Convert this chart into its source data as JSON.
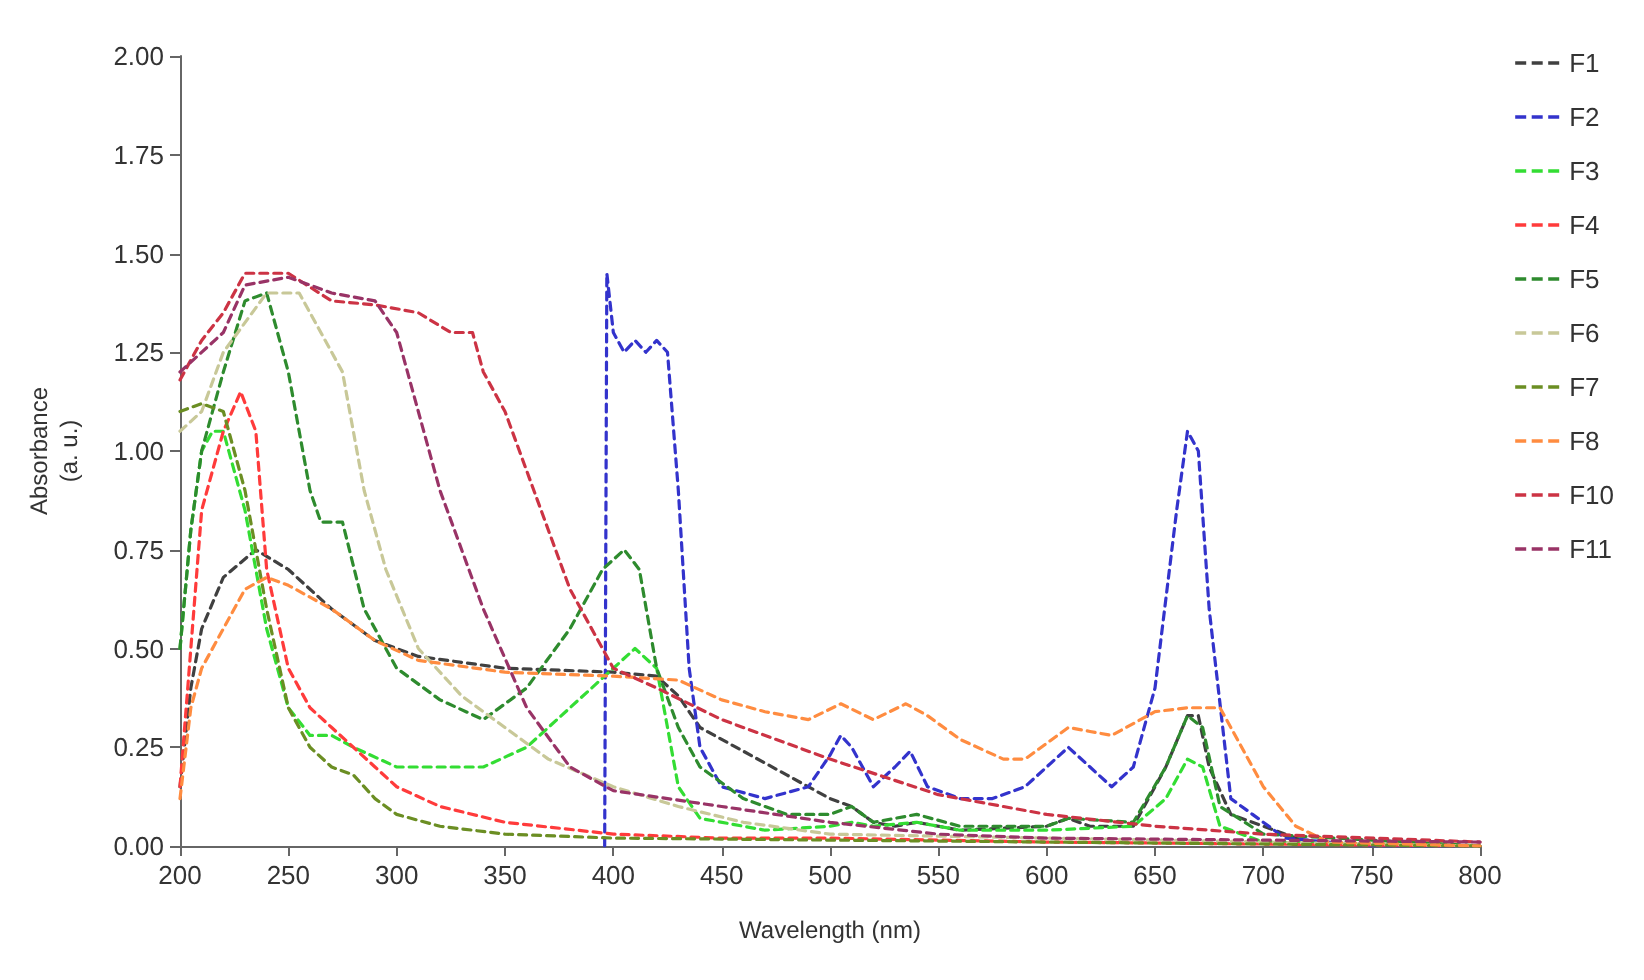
{
  "chart_data": {
    "type": "line",
    "xlabel": "Wavelength (nm)",
    "ylabel": "Absorbance\n(a. u.)",
    "line_style": "dashed",
    "marker": "none",
    "grid": false,
    "legend": "right",
    "xlim": [
      200,
      800
    ],
    "xticks": [
      200,
      250,
      300,
      350,
      400,
      450,
      500,
      550,
      600,
      650,
      700,
      750,
      800
    ],
    "ylim": [
      0,
      2
    ],
    "yticks": [
      {
        "value": 0,
        "label": "0.00"
      },
      {
        "value": 0.25,
        "label": "0.25"
      },
      {
        "value": 0.5,
        "label": "0.50"
      },
      {
        "value": 0.75,
        "label": "0.75"
      },
      {
        "value": 1,
        "label": "1.00"
      },
      {
        "value": 1.25,
        "label": "1.25"
      },
      {
        "value": 1.5,
        "label": "1.50"
      },
      {
        "value": 1.75,
        "label": "1.75"
      },
      {
        "value": 2,
        "label": "2.00"
      }
    ],
    "series": [
      {
        "name": "F1",
        "color": "#404040",
        "x": [
          200,
          205,
          210,
          220,
          235,
          250,
          270,
          290,
          310,
          350,
          400,
          420,
          430,
          440,
          460,
          480,
          500,
          510,
          520,
          530,
          540,
          560,
          600,
          610,
          620,
          640,
          655,
          665,
          670,
          675,
          685,
          700,
          720,
          800
        ],
        "values": [
          0.15,
          0.4,
          0.55,
          0.68,
          0.75,
          0.7,
          0.6,
          0.52,
          0.48,
          0.45,
          0.44,
          0.43,
          0.38,
          0.3,
          0.24,
          0.18,
          0.12,
          0.1,
          0.06,
          0.05,
          0.06,
          0.04,
          0.05,
          0.07,
          0.05,
          0.05,
          0.2,
          0.33,
          0.33,
          0.2,
          0.08,
          0.05,
          0.01,
          0
        ]
      },
      {
        "name": "F2",
        "color": "#3333cc",
        "x": [
          396,
          397,
          400,
          405,
          410,
          415,
          420,
          425,
          430,
          435,
          440,
          450,
          470,
          490,
          500,
          505,
          510,
          520,
          530,
          537,
          545,
          560,
          575,
          590,
          600,
          610,
          620,
          630,
          640,
          650,
          660,
          665,
          670,
          675,
          685,
          695,
          710,
          750,
          800
        ],
        "values": [
          0,
          1.45,
          1.3,
          1.25,
          1.28,
          1.25,
          1.28,
          1.25,
          0.9,
          0.45,
          0.25,
          0.15,
          0.12,
          0.15,
          0.23,
          0.28,
          0.25,
          0.15,
          0.2,
          0.24,
          0.15,
          0.12,
          0.12,
          0.15,
          0.2,
          0.25,
          0.2,
          0.15,
          0.2,
          0.4,
          0.85,
          1.05,
          1.0,
          0.6,
          0.12,
          0.08,
          0.02,
          0,
          0
        ]
      },
      {
        "name": "F3",
        "color": "#33dd33",
        "x": [
          200,
          205,
          210,
          215,
          220,
          230,
          240,
          250,
          260,
          270,
          280,
          300,
          320,
          340,
          360,
          380,
          400,
          410,
          420,
          425,
          430,
          440,
          470,
          500,
          510,
          520,
          540,
          560,
          600,
          640,
          655,
          665,
          672,
          680,
          700,
          800
        ],
        "values": [
          0.5,
          0.8,
          1.0,
          1.05,
          1.05,
          0.85,
          0.55,
          0.35,
          0.28,
          0.28,
          0.25,
          0.2,
          0.2,
          0.2,
          0.25,
          0.35,
          0.45,
          0.5,
          0.45,
          0.3,
          0.15,
          0.07,
          0.04,
          0.05,
          0.06,
          0.05,
          0.06,
          0.04,
          0.04,
          0.05,
          0.12,
          0.22,
          0.2,
          0.05,
          0.01,
          0
        ]
      },
      {
        "name": "F4",
        "color": "#ff3b3b",
        "x": [
          200,
          205,
          210,
          220,
          228,
          235,
          240,
          250,
          260,
          270,
          280,
          290,
          300,
          320,
          350,
          400,
          450,
          500,
          600,
          800
        ],
        "values": [
          0.15,
          0.5,
          0.85,
          1.05,
          1.15,
          1.05,
          0.7,
          0.45,
          0.35,
          0.3,
          0.25,
          0.2,
          0.15,
          0.1,
          0.06,
          0.03,
          0.02,
          0.02,
          0.01,
          0
        ]
      },
      {
        "name": "F5",
        "color": "#2e8b2e",
        "x": [
          200,
          205,
          210,
          220,
          230,
          240,
          250,
          260,
          265,
          275,
          285,
          300,
          320,
          340,
          360,
          380,
          395,
          405,
          412,
          420,
          430,
          440,
          460,
          480,
          500,
          510,
          520,
          540,
          560,
          600,
          610,
          640,
          655,
          665,
          672,
          680,
          700,
          800
        ],
        "values": [
          0.5,
          0.8,
          1.0,
          1.2,
          1.38,
          1.4,
          1.2,
          0.9,
          0.82,
          0.82,
          0.6,
          0.45,
          0.37,
          0.32,
          0.4,
          0.55,
          0.7,
          0.75,
          0.7,
          0.45,
          0.3,
          0.2,
          0.12,
          0.08,
          0.08,
          0.1,
          0.06,
          0.08,
          0.05,
          0.05,
          0.07,
          0.06,
          0.2,
          0.33,
          0.3,
          0.1,
          0.03,
          0
        ]
      },
      {
        "name": "F6",
        "color": "#c8c898",
        "x": [
          200,
          210,
          220,
          240,
          255,
          265,
          275,
          285,
          295,
          310,
          330,
          350,
          370,
          400,
          430,
          460,
          500,
          600,
          800
        ],
        "values": [
          1.05,
          1.1,
          1.25,
          1.4,
          1.4,
          1.3,
          1.2,
          0.9,
          0.7,
          0.5,
          0.38,
          0.3,
          0.22,
          0.15,
          0.1,
          0.06,
          0.03,
          0.02,
          0
        ]
      },
      {
        "name": "F7",
        "color": "#6b8e23",
        "x": [
          200,
          210,
          220,
          230,
          240,
          250,
          260,
          270,
          280,
          290,
          300,
          320,
          350,
          400,
          800
        ],
        "values": [
          1.1,
          1.12,
          1.1,
          0.9,
          0.6,
          0.35,
          0.25,
          0.2,
          0.18,
          0.12,
          0.08,
          0.05,
          0.03,
          0.02,
          0
        ]
      },
      {
        "name": "F8",
        "color": "#ff8c40",
        "x": [
          200,
          205,
          210,
          220,
          230,
          240,
          250,
          270,
          290,
          310,
          350,
          400,
          430,
          450,
          470,
          490,
          505,
          520,
          535,
          545,
          560,
          580,
          590,
          610,
          620,
          630,
          650,
          665,
          680,
          690,
          700,
          715,
          730,
          800
        ],
        "values": [
          0.12,
          0.35,
          0.45,
          0.55,
          0.65,
          0.68,
          0.66,
          0.6,
          0.52,
          0.47,
          0.44,
          0.43,
          0.42,
          0.37,
          0.34,
          0.32,
          0.36,
          0.32,
          0.36,
          0.33,
          0.27,
          0.22,
          0.22,
          0.3,
          0.29,
          0.28,
          0.34,
          0.35,
          0.35,
          0.25,
          0.15,
          0.05,
          0.01,
          0
        ]
      },
      {
        "name": "F10",
        "color": "#cc3344",
        "x": [
          200,
          210,
          220,
          230,
          250,
          270,
          290,
          310,
          325,
          335,
          340,
          350,
          360,
          380,
          400,
          420,
          450,
          500,
          550,
          600,
          650,
          700,
          800
        ],
        "values": [
          1.18,
          1.28,
          1.35,
          1.45,
          1.45,
          1.38,
          1.37,
          1.35,
          1.3,
          1.3,
          1.2,
          1.1,
          0.95,
          0.65,
          0.45,
          0.4,
          0.32,
          0.22,
          0.13,
          0.08,
          0.05,
          0.03,
          0.01
        ]
      },
      {
        "name": "F11",
        "color": "#993366",
        "x": [
          200,
          220,
          230,
          250,
          270,
          290,
          300,
          310,
          320,
          340,
          360,
          380,
          400,
          450,
          500,
          550,
          600,
          800
        ],
        "values": [
          1.2,
          1.3,
          1.42,
          1.44,
          1.4,
          1.38,
          1.3,
          1.1,
          0.9,
          0.6,
          0.35,
          0.2,
          0.14,
          0.1,
          0.06,
          0.03,
          0.02,
          0.01
        ]
      }
    ]
  }
}
